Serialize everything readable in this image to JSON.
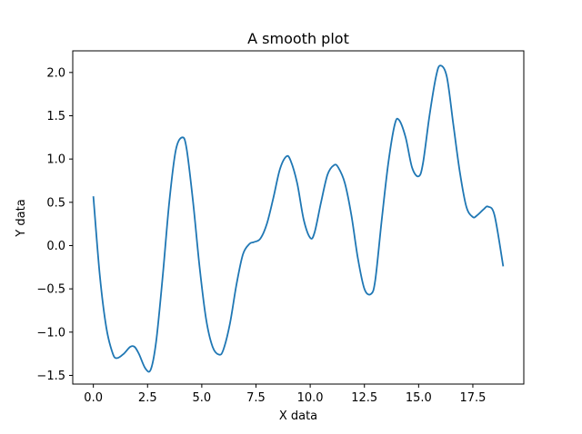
{
  "chart_data": {
    "type": "line",
    "title": "A smooth plot",
    "xlabel": "X data",
    "ylabel": "Y data",
    "xlim": [
      -0.95,
      19.85
    ],
    "ylim": [
      -1.6,
      2.25
    ],
    "grid": false,
    "legend": "none",
    "xticks": [
      0.0,
      2.5,
      5.0,
      7.5,
      10.0,
      12.5,
      15.0,
      17.5
    ],
    "xtick_labels": [
      "0.0",
      "2.5",
      "5.0",
      "7.5",
      "10.0",
      "12.5",
      "15.0",
      "17.5"
    ],
    "yticks": [
      -1.5,
      -1.0,
      -0.5,
      0.0,
      0.5,
      1.0,
      1.5,
      2.0
    ],
    "ytick_labels": [
      "−1.5",
      "−1.0",
      "−0.5",
      "0.0",
      "0.5",
      "1.0",
      "1.5",
      "2.0"
    ],
    "line_color": "#1f77b4",
    "series": [
      {
        "x": [
          0.0,
          0.3,
          0.6,
          0.9,
          1.1,
          1.4,
          1.7,
          1.9,
          2.1,
          2.4,
          2.65,
          2.9,
          3.2,
          3.5,
          3.8,
          4.1,
          4.3,
          4.6,
          4.9,
          5.2,
          5.5,
          5.8,
          6.0,
          6.3,
          6.6,
          6.9,
          7.2,
          7.4,
          7.7,
          8.0,
          8.3,
          8.6,
          8.9,
          9.1,
          9.4,
          9.7,
          10.0,
          10.2,
          10.5,
          10.8,
          11.1,
          11.3,
          11.6,
          11.9,
          12.2,
          12.5,
          12.8,
          13.0,
          13.3,
          13.6,
          13.9,
          14.1,
          14.4,
          14.7,
          15.0,
          15.2,
          15.5,
          15.8,
          16.0,
          16.3,
          16.6,
          16.9,
          17.2,
          17.5,
          17.7,
          18.0,
          18.2,
          18.5,
          18.9
        ],
        "y": [
          0.57,
          -0.35,
          -0.95,
          -1.25,
          -1.3,
          -1.25,
          -1.17,
          -1.17,
          -1.25,
          -1.42,
          -1.43,
          -1.1,
          -0.35,
          0.5,
          1.1,
          1.25,
          1.12,
          0.5,
          -0.25,
          -0.85,
          -1.17,
          -1.26,
          -1.2,
          -0.9,
          -0.45,
          -0.1,
          0.02,
          0.04,
          0.08,
          0.25,
          0.55,
          0.88,
          1.03,
          0.98,
          0.72,
          0.3,
          0.09,
          0.15,
          0.5,
          0.82,
          0.93,
          0.9,
          0.72,
          0.35,
          -0.15,
          -0.5,
          -0.56,
          -0.4,
          0.3,
          0.95,
          1.4,
          1.45,
          1.25,
          0.9,
          0.8,
          0.95,
          1.5,
          1.95,
          2.08,
          1.95,
          1.4,
          0.85,
          0.45,
          0.33,
          0.35,
          0.42,
          0.45,
          0.35,
          -0.24
        ]
      }
    ]
  }
}
